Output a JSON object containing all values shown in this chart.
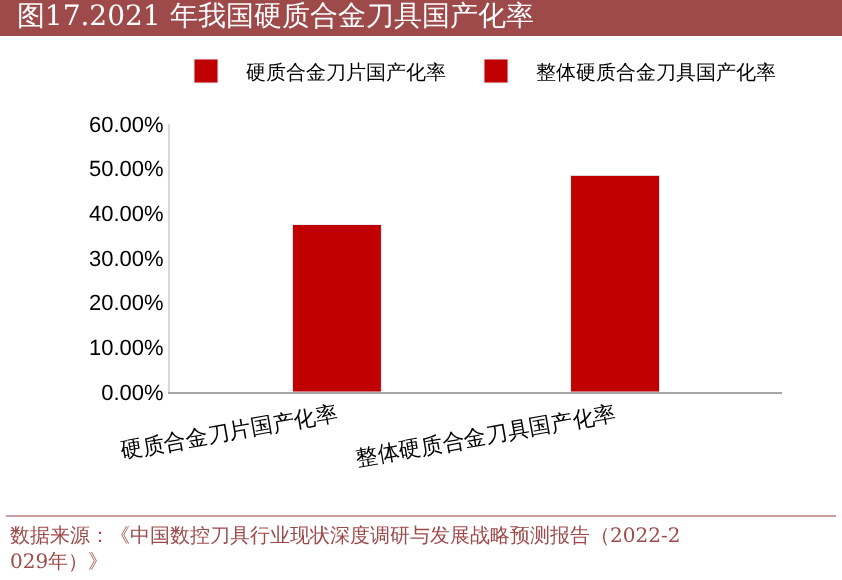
{
  "chart_data": {
    "type": "bar",
    "title": "图17.2021 年我国硬质合金刀具国产化率",
    "categories": [
      "硬质合金刀片国产化率",
      "整体硬质合金刀具国产化率"
    ],
    "series": [
      {
        "name": "硬质合金刀片国产化率",
        "color": "#c00000",
        "values": [
          37.5,
          null
        ]
      },
      {
        "name": "整体硬质合金刀具国产化率",
        "color": "#c00000",
        "values": [
          null,
          48.5
        ]
      }
    ],
    "ylim": [
      0,
      60
    ],
    "yticks": [
      {
        "value": 0,
        "label": "0.00%"
      },
      {
        "value": 10,
        "label": "10.00%"
      },
      {
        "value": 20,
        "label": "20.00%"
      },
      {
        "value": 30,
        "label": "30.00%"
      },
      {
        "value": 40,
        "label": "40.00%"
      },
      {
        "value": 50,
        "label": "50.00%"
      },
      {
        "value": 60,
        "label": "60.00%"
      }
    ],
    "legend": "top",
    "annotations": [
      "数据来源：《中国数控刀具行业现状深度调研与发展战略预测报告（2022-2029年）》"
    ]
  }
}
